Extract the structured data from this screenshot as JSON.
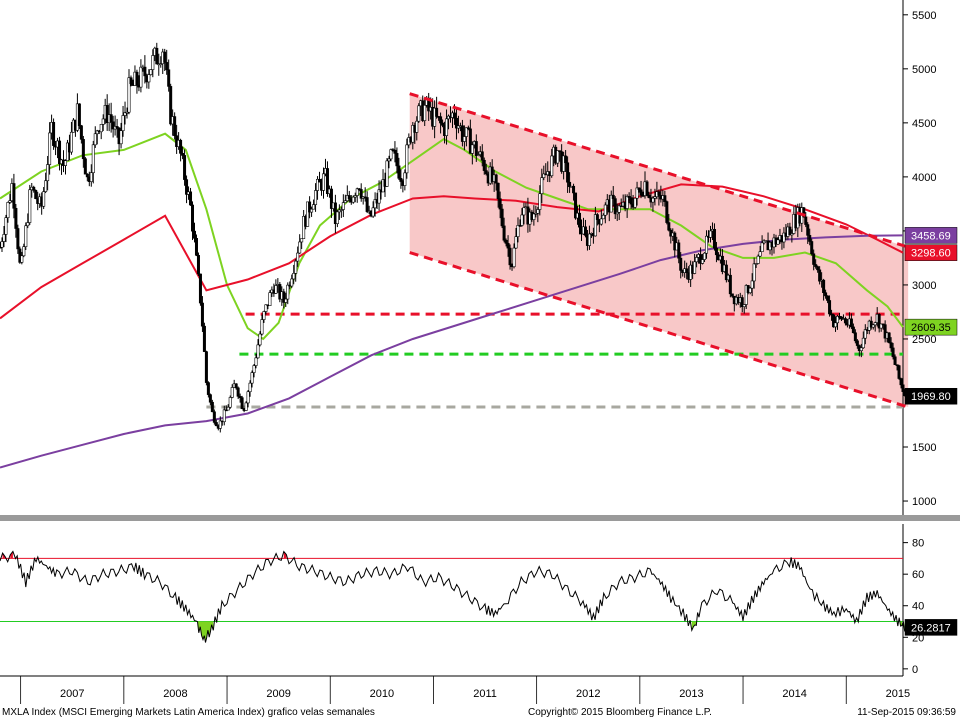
{
  "footer": {
    "index_description": "MXLA Index (MSCI Emerging Markets Latin America Index) grafico velas semanales",
    "copyright": "Copyright© 2015 Bloomberg Finance L.P.",
    "timestamp": "11-Sep-2015 09:36:59"
  },
  "chart_data": [
    {
      "type": "candlestick",
      "title": "",
      "y_ticks": [
        1000,
        1500,
        2000,
        2500,
        3000,
        3500,
        4000,
        4500,
        5000,
        5500
      ],
      "ylim": [
        880,
        5600
      ],
      "x_years": [
        "2007",
        "2008",
        "2009",
        "2010",
        "2011",
        "2012",
        "2013",
        "2014",
        "2015"
      ],
      "xlim": [
        2006.8,
        2015.55
      ],
      "price_path": [
        [
          2006.8,
          3350
        ],
        [
          2006.92,
          3950
        ],
        [
          2007.0,
          3100
        ],
        [
          2007.1,
          3900
        ],
        [
          2007.2,
          3700
        ],
        [
          2007.3,
          4450
        ],
        [
          2007.42,
          4100
        ],
        [
          2007.55,
          4600
        ],
        [
          2007.65,
          3950
        ],
        [
          2007.75,
          4500
        ],
        [
          2007.85,
          4600
        ],
        [
          2007.95,
          4300
        ],
        [
          2008.05,
          4800
        ],
        [
          2008.2,
          4950
        ],
        [
          2008.38,
          5200
        ],
        [
          2008.45,
          4600
        ],
        [
          2008.55,
          4200
        ],
        [
          2008.65,
          3700
        ],
        [
          2008.75,
          2800
        ],
        [
          2008.8,
          2100
        ],
        [
          2008.86,
          1800
        ],
        [
          2008.92,
          1700
        ],
        [
          2009.0,
          1850
        ],
        [
          2009.08,
          2100
        ],
        [
          2009.16,
          1850
        ],
        [
          2009.25,
          2200
        ],
        [
          2009.35,
          2700
        ],
        [
          2009.45,
          3000
        ],
        [
          2009.55,
          2850
        ],
        [
          2009.65,
          3200
        ],
        [
          2009.75,
          3600
        ],
        [
          2009.85,
          3850
        ],
        [
          2009.95,
          4000
        ],
        [
          2010.05,
          3600
        ],
        [
          2010.15,
          3750
        ],
        [
          2010.28,
          3950
        ],
        [
          2010.38,
          3600
        ],
        [
          2010.5,
          3900
        ],
        [
          2010.6,
          4200
        ],
        [
          2010.7,
          4000
        ],
        [
          2010.8,
          4500
        ],
        [
          2010.92,
          4650
        ],
        [
          2011.0,
          4550
        ],
        [
          2011.1,
          4450
        ],
        [
          2011.2,
          4600
        ],
        [
          2011.28,
          4400
        ],
        [
          2011.38,
          4300
        ],
        [
          2011.5,
          4100
        ],
        [
          2011.6,
          3900
        ],
        [
          2011.68,
          3500
        ],
        [
          2011.76,
          3200
        ],
        [
          2011.85,
          3700
        ],
        [
          2011.95,
          3600
        ],
        [
          2012.08,
          4000
        ],
        [
          2012.2,
          4250
        ],
        [
          2012.3,
          4000
        ],
        [
          2012.4,
          3600
        ],
        [
          2012.48,
          3400
        ],
        [
          2012.58,
          3600
        ],
        [
          2012.7,
          3750
        ],
        [
          2012.82,
          3700
        ],
        [
          2012.95,
          3800
        ],
        [
          2013.05,
          3950
        ],
        [
          2013.12,
          3800
        ],
        [
          2013.22,
          3800
        ],
        [
          2013.32,
          3450
        ],
        [
          2013.42,
          3100
        ],
        [
          2013.52,
          3150
        ],
        [
          2013.6,
          3300
        ],
        [
          2013.7,
          3450
        ],
        [
          2013.8,
          3200
        ],
        [
          2013.9,
          2900
        ],
        [
          2014.0,
          2850
        ],
        [
          2014.1,
          3100
        ],
        [
          2014.2,
          3350
        ],
        [
          2014.3,
          3400
        ],
        [
          2014.4,
          3450
        ],
        [
          2014.5,
          3600
        ],
        [
          2014.58,
          3700
        ],
        [
          2014.65,
          3400
        ],
        [
          2014.72,
          3100
        ],
        [
          2014.8,
          2900
        ],
        [
          2014.88,
          2650
        ],
        [
          2014.96,
          2700
        ],
        [
          2015.05,
          2600
        ],
        [
          2015.12,
          2400
        ],
        [
          2015.22,
          2650
        ],
        [
          2015.3,
          2700
        ],
        [
          2015.38,
          2550
        ],
        [
          2015.45,
          2350
        ],
        [
          2015.52,
          2100
        ],
        [
          2015.58,
          1970
        ]
      ],
      "lines": [
        {
          "color": "#7ed321",
          "points": [
            [
              2006.8,
              3800
            ],
            [
              2007.2,
              4050
            ],
            [
              2007.6,
              4200
            ],
            [
              2008.0,
              4250
            ],
            [
              2008.4,
              4400
            ],
            [
              2008.6,
              4250
            ],
            [
              2008.8,
              3700
            ],
            [
              2009.0,
              3000
            ],
            [
              2009.2,
              2600
            ],
            [
              2009.35,
              2500
            ],
            [
              2009.5,
              2650
            ],
            [
              2009.7,
              3200
            ],
            [
              2009.9,
              3550
            ],
            [
              2010.2,
              3800
            ],
            [
              2010.5,
              3950
            ],
            [
              2010.8,
              4150
            ],
            [
              2011.1,
              4350
            ],
            [
              2011.3,
              4250
            ],
            [
              2011.6,
              4050
            ],
            [
              2011.9,
              3900
            ],
            [
              2012.2,
              3800
            ],
            [
              2012.5,
              3700
            ],
            [
              2012.8,
              3700
            ],
            [
              2013.1,
              3700
            ],
            [
              2013.4,
              3550
            ],
            [
              2013.7,
              3350
            ],
            [
              2014.0,
              3250
            ],
            [
              2014.3,
              3250
            ],
            [
              2014.6,
              3300
            ],
            [
              2014.9,
              3200
            ],
            [
              2015.2,
              2950
            ],
            [
              2015.4,
              2800
            ],
            [
              2015.55,
              2609.35
            ]
          ]
        },
        {
          "color": "#e8102a",
          "points": [
            [
              2006.8,
              2690
            ],
            [
              2007.2,
              2980
            ],
            [
              2007.6,
              3200
            ],
            [
              2008.0,
              3420
            ],
            [
              2008.4,
              3640
            ],
            [
              2008.8,
              2950
            ],
            [
              2009.2,
              3050
            ],
            [
              2009.6,
              3200
            ],
            [
              2010.0,
              3450
            ],
            [
              2010.4,
              3650
            ],
            [
              2010.8,
              3800
            ],
            [
              2011.1,
              3820
            ],
            [
              2011.4,
              3800
            ],
            [
              2011.8,
              3780
            ],
            [
              2012.2,
              3720
            ],
            [
              2012.6,
              3680
            ],
            [
              2013.0,
              3820
            ],
            [
              2013.4,
              3930
            ],
            [
              2013.8,
              3910
            ],
            [
              2014.2,
              3820
            ],
            [
              2014.6,
              3700
            ],
            [
              2015.0,
              3560
            ],
            [
              2015.3,
              3420
            ],
            [
              2015.55,
              3298.6
            ]
          ]
        },
        {
          "color": "#7b3fa0",
          "points": [
            [
              2006.8,
              1310
            ],
            [
              2007.2,
              1420
            ],
            [
              2007.6,
              1520
            ],
            [
              2008.0,
              1620
            ],
            [
              2008.4,
              1700
            ],
            [
              2008.8,
              1740
            ],
            [
              2009.2,
              1810
            ],
            [
              2009.6,
              1950
            ],
            [
              2010.0,
              2150
            ],
            [
              2010.4,
              2350
            ],
            [
              2010.8,
              2500
            ],
            [
              2011.2,
              2620
            ],
            [
              2011.6,
              2740
            ],
            [
              2012.0,
              2860
            ],
            [
              2012.4,
              2980
            ],
            [
              2012.8,
              3100
            ],
            [
              2013.2,
              3230
            ],
            [
              2013.6,
              3320
            ],
            [
              2014.0,
              3380
            ],
            [
              2014.4,
              3420
            ],
            [
              2014.8,
              3440
            ],
            [
              2015.2,
              3455
            ],
            [
              2015.55,
              3458.69
            ]
          ]
        }
      ],
      "channel": {
        "fill": "#f8c8c8",
        "upper": [
          [
            2010.77,
            4770
          ],
          [
            2015.6,
            3350
          ]
        ],
        "lower": [
          [
            2010.77,
            3300
          ],
          [
            2015.6,
            1870
          ]
        ]
      },
      "horizontal_levels": [
        {
          "value": 2730,
          "color": "#e8102a",
          "from": 2009.18
        },
        {
          "value": 2360,
          "color": "#22cc22",
          "from": 2009.12
        },
        {
          "value": 1870,
          "color": "#a8a8a0",
          "from": 2008.8
        }
      ],
      "value_tags": [
        {
          "value": 3458.69,
          "label": "3458.69",
          "bg": "#7b3fa0",
          "fg": "#ffffff"
        },
        {
          "value": 3298.6,
          "label": "3298.60",
          "bg": "#e8102a",
          "fg": "#ffffff"
        },
        {
          "value": 2609.35,
          "label": "2609.35",
          "bg": "#7ed321",
          "fg": "#000000"
        },
        {
          "value": 1969.8,
          "label": "1969.80",
          "bg": "#000000",
          "fg": "#ffffff"
        }
      ]
    },
    {
      "type": "line",
      "title": "",
      "y_ticks": [
        0,
        20,
        40,
        60,
        80
      ],
      "ylim": [
        -2,
        88
      ],
      "reference_lines": [
        {
          "value": 70,
          "color": "#e8102a"
        },
        {
          "value": 30,
          "color": "#22cc22"
        }
      ],
      "series": [
        {
          "values": [
            [
              2006.8,
              70
            ],
            [
              2006.95,
              72
            ],
            [
              2007.05,
              55
            ],
            [
              2007.15,
              70
            ],
            [
              2007.25,
              65
            ],
            [
              2007.35,
              60
            ],
            [
              2007.5,
              62
            ],
            [
              2007.65,
              55
            ],
            [
              2007.8,
              60
            ],
            [
              2007.95,
              62
            ],
            [
              2008.1,
              65
            ],
            [
              2008.2,
              60
            ],
            [
              2008.35,
              55
            ],
            [
              2008.5,
              45
            ],
            [
              2008.6,
              38
            ],
            [
              2008.7,
              30
            ],
            [
              2008.78,
              18
            ],
            [
              2008.85,
              25
            ],
            [
              2008.95,
              40
            ],
            [
              2009.1,
              50
            ],
            [
              2009.25,
              60
            ],
            [
              2009.4,
              68
            ],
            [
              2009.55,
              72
            ],
            [
              2009.7,
              65
            ],
            [
              2009.85,
              62
            ],
            [
              2010.0,
              58
            ],
            [
              2010.15,
              55
            ],
            [
              2010.3,
              60
            ],
            [
              2010.45,
              62
            ],
            [
              2010.6,
              60
            ],
            [
              2010.75,
              65
            ],
            [
              2010.9,
              55
            ],
            [
              2011.05,
              58
            ],
            [
              2011.2,
              52
            ],
            [
              2011.35,
              45
            ],
            [
              2011.5,
              38
            ],
            [
              2011.6,
              35
            ],
            [
              2011.7,
              42
            ],
            [
              2011.85,
              55
            ],
            [
              2012.0,
              62
            ],
            [
              2012.15,
              60
            ],
            [
              2012.3,
              50
            ],
            [
              2012.45,
              42
            ],
            [
              2012.55,
              32
            ],
            [
              2012.65,
              45
            ],
            [
              2012.8,
              55
            ],
            [
              2012.95,
              58
            ],
            [
              2013.1,
              62
            ],
            [
              2013.2,
              55
            ],
            [
              2013.3,
              45
            ],
            [
              2013.42,
              35
            ],
            [
              2013.52,
              25
            ],
            [
              2013.6,
              40
            ],
            [
              2013.75,
              50
            ],
            [
              2013.9,
              42
            ],
            [
              2014.0,
              33
            ],
            [
              2014.1,
              45
            ],
            [
              2014.2,
              55
            ],
            [
              2014.3,
              62
            ],
            [
              2014.45,
              68
            ],
            [
              2014.55,
              65
            ],
            [
              2014.65,
              50
            ],
            [
              2014.78,
              40
            ],
            [
              2014.88,
              35
            ],
            [
              2015.0,
              38
            ],
            [
              2015.1,
              30
            ],
            [
              2015.2,
              45
            ],
            [
              2015.3,
              48
            ],
            [
              2015.4,
              38
            ],
            [
              2015.5,
              30
            ],
            [
              2015.58,
              26.28
            ]
          ]
        }
      ],
      "value_tags": [
        {
          "value": 26.2817,
          "label": "26.2817",
          "bg": "#000000",
          "fg": "#ffffff"
        }
      ]
    }
  ]
}
